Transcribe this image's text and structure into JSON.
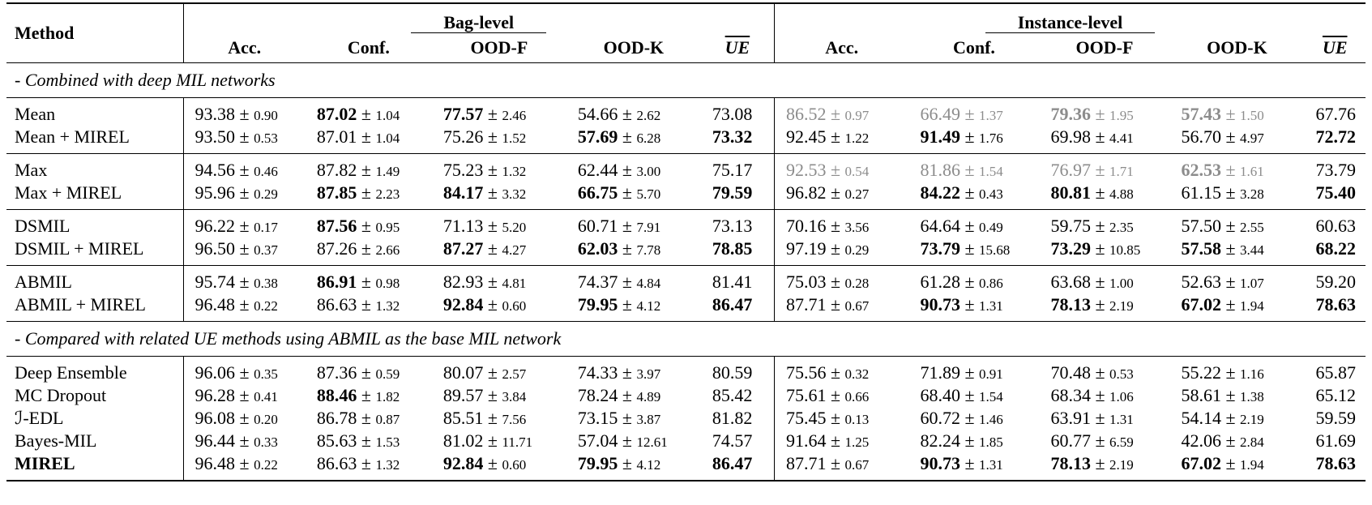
{
  "table": {
    "plus_minus": "±",
    "header": {
      "method": "Method",
      "groups": [
        {
          "title": "Bag-level",
          "columns": [
            "Acc.",
            "Conf.",
            "OOD-F",
            "OOD-K",
            "UE"
          ]
        },
        {
          "title": "Instance-level",
          "columns": [
            "Acc.",
            "Conf.",
            "OOD-F",
            "OOD-K",
            "UE"
          ]
        }
      ]
    },
    "sections": [
      {
        "title": "- Combined with deep MIL networks",
        "groups": [
          {
            "rows": [
              {
                "method": "Mean",
                "cells": [
                  {
                    "mean": "93.38",
                    "std": "0.90"
                  },
                  {
                    "mean": "87.02",
                    "std": "1.04",
                    "bold": true
                  },
                  {
                    "mean": "77.57",
                    "std": "2.46",
                    "bold": true
                  },
                  {
                    "mean": "54.66",
                    "std": "2.62"
                  },
                  {
                    "mean": "73.08"
                  },
                  {
                    "mean": "86.52",
                    "std": "0.97",
                    "gray": true
                  },
                  {
                    "mean": "66.49",
                    "std": "1.37",
                    "gray": true
                  },
                  {
                    "mean": "79.36",
                    "std": "1.95",
                    "gray": true,
                    "bold": true
                  },
                  {
                    "mean": "57.43",
                    "std": "1.50",
                    "gray": true,
                    "bold": true
                  },
                  {
                    "mean": "67.76"
                  }
                ]
              },
              {
                "method": "Mean + MIREL",
                "cells": [
                  {
                    "mean": "93.50",
                    "std": "0.53"
                  },
                  {
                    "mean": "87.01",
                    "std": "1.04"
                  },
                  {
                    "mean": "75.26",
                    "std": "1.52"
                  },
                  {
                    "mean": "57.69",
                    "std": "6.28",
                    "bold": true
                  },
                  {
                    "mean": "73.32",
                    "bold": true
                  },
                  {
                    "mean": "92.45",
                    "std": "1.22"
                  },
                  {
                    "mean": "91.49",
                    "std": "1.76",
                    "bold": true
                  },
                  {
                    "mean": "69.98",
                    "std": "4.41"
                  },
                  {
                    "mean": "56.70",
                    "std": "4.97"
                  },
                  {
                    "mean": "72.72",
                    "bold": true
                  }
                ]
              }
            ]
          },
          {
            "rows": [
              {
                "method": "Max",
                "cells": [
                  {
                    "mean": "94.56",
                    "std": "0.46"
                  },
                  {
                    "mean": "87.82",
                    "std": "1.49"
                  },
                  {
                    "mean": "75.23",
                    "std": "1.32"
                  },
                  {
                    "mean": "62.44",
                    "std": "3.00"
                  },
                  {
                    "mean": "75.17"
                  },
                  {
                    "mean": "92.53",
                    "std": "0.54",
                    "gray": true
                  },
                  {
                    "mean": "81.86",
                    "std": "1.54",
                    "gray": true
                  },
                  {
                    "mean": "76.97",
                    "std": "1.71",
                    "gray": true
                  },
                  {
                    "mean": "62.53",
                    "std": "1.61",
                    "gray": true,
                    "bold": true
                  },
                  {
                    "mean": "73.79"
                  }
                ]
              },
              {
                "method": "Max + MIREL",
                "cells": [
                  {
                    "mean": "95.96",
                    "std": "0.29"
                  },
                  {
                    "mean": "87.85",
                    "std": "2.23",
                    "bold": true
                  },
                  {
                    "mean": "84.17",
                    "std": "3.32",
                    "bold": true
                  },
                  {
                    "mean": "66.75",
                    "std": "5.70",
                    "bold": true
                  },
                  {
                    "mean": "79.59",
                    "bold": true
                  },
                  {
                    "mean": "96.82",
                    "std": "0.27"
                  },
                  {
                    "mean": "84.22",
                    "std": "0.43",
                    "bold": true
                  },
                  {
                    "mean": "80.81",
                    "std": "4.88",
                    "bold": true
                  },
                  {
                    "mean": "61.15",
                    "std": "3.28"
                  },
                  {
                    "mean": "75.40",
                    "bold": true
                  }
                ]
              }
            ]
          },
          {
            "rows": [
              {
                "method": "DSMIL",
                "cells": [
                  {
                    "mean": "96.22",
                    "std": "0.17"
                  },
                  {
                    "mean": "87.56",
                    "std": "0.95",
                    "bold": true
                  },
                  {
                    "mean": "71.13",
                    "std": "5.20"
                  },
                  {
                    "mean": "60.71",
                    "std": "7.91"
                  },
                  {
                    "mean": "73.13"
                  },
                  {
                    "mean": "70.16",
                    "std": "3.56"
                  },
                  {
                    "mean": "64.64",
                    "std": "0.49"
                  },
                  {
                    "mean": "59.75",
                    "std": "2.35"
                  },
                  {
                    "mean": "57.50",
                    "std": "2.55"
                  },
                  {
                    "mean": "60.63"
                  }
                ]
              },
              {
                "method": "DSMIL + MIREL",
                "cells": [
                  {
                    "mean": "96.50",
                    "std": "0.37"
                  },
                  {
                    "mean": "87.26",
                    "std": "2.66"
                  },
                  {
                    "mean": "87.27",
                    "std": "4.27",
                    "bold": true
                  },
                  {
                    "mean": "62.03",
                    "std": "7.78",
                    "bold": true
                  },
                  {
                    "mean": "78.85",
                    "bold": true
                  },
                  {
                    "mean": "97.19",
                    "std": "0.29"
                  },
                  {
                    "mean": "73.79",
                    "std": "15.68",
                    "bold": true
                  },
                  {
                    "mean": "73.29",
                    "std": "10.85",
                    "bold": true
                  },
                  {
                    "mean": "57.58",
                    "std": "3.44",
                    "bold": true
                  },
                  {
                    "mean": "68.22",
                    "bold": true
                  }
                ]
              }
            ]
          },
          {
            "rows": [
              {
                "method": "ABMIL",
                "cells": [
                  {
                    "mean": "95.74",
                    "std": "0.38"
                  },
                  {
                    "mean": "86.91",
                    "std": "0.98",
                    "bold": true
                  },
                  {
                    "mean": "82.93",
                    "std": "4.81"
                  },
                  {
                    "mean": "74.37",
                    "std": "4.84"
                  },
                  {
                    "mean": "81.41"
                  },
                  {
                    "mean": "75.03",
                    "std": "0.28"
                  },
                  {
                    "mean": "61.28",
                    "std": "0.86"
                  },
                  {
                    "mean": "63.68",
                    "std": "1.00"
                  },
                  {
                    "mean": "52.63",
                    "std": "1.07"
                  },
                  {
                    "mean": "59.20"
                  }
                ]
              },
              {
                "method": "ABMIL + MIREL",
                "cells": [
                  {
                    "mean": "96.48",
                    "std": "0.22"
                  },
                  {
                    "mean": "86.63",
                    "std": "1.32"
                  },
                  {
                    "mean": "92.84",
                    "std": "0.60",
                    "bold": true
                  },
                  {
                    "mean": "79.95",
                    "std": "4.12",
                    "bold": true
                  },
                  {
                    "mean": "86.47",
                    "bold": true
                  },
                  {
                    "mean": "87.71",
                    "std": "0.67"
                  },
                  {
                    "mean": "90.73",
                    "std": "1.31",
                    "bold": true
                  },
                  {
                    "mean": "78.13",
                    "std": "2.19",
                    "bold": true
                  },
                  {
                    "mean": "67.02",
                    "std": "1.94",
                    "bold": true
                  },
                  {
                    "mean": "78.63",
                    "bold": true
                  }
                ]
              }
            ]
          }
        ]
      },
      {
        "title": "- Compared with related UE methods using ABMIL as the base MIL network",
        "groups": [
          {
            "rows": [
              {
                "method": "Deep Ensemble",
                "cells": [
                  {
                    "mean": "96.06",
                    "std": "0.35"
                  },
                  {
                    "mean": "87.36",
                    "std": "0.59"
                  },
                  {
                    "mean": "80.07",
                    "std": "2.57"
                  },
                  {
                    "mean": "74.33",
                    "std": "3.97"
                  },
                  {
                    "mean": "80.59"
                  },
                  {
                    "mean": "75.56",
                    "std": "0.32"
                  },
                  {
                    "mean": "71.89",
                    "std": "0.91"
                  },
                  {
                    "mean": "70.48",
                    "std": "0.53"
                  },
                  {
                    "mean": "55.22",
                    "std": "1.16"
                  },
                  {
                    "mean": "65.87"
                  }
                ]
              },
              {
                "method": "MC Dropout",
                "cells": [
                  {
                    "mean": "96.28",
                    "std": "0.41"
                  },
                  {
                    "mean": "88.46",
                    "std": "1.82",
                    "bold": true
                  },
                  {
                    "mean": "89.57",
                    "std": "3.84"
                  },
                  {
                    "mean": "78.24",
                    "std": "4.89"
                  },
                  {
                    "mean": "85.42"
                  },
                  {
                    "mean": "75.61",
                    "std": "0.66"
                  },
                  {
                    "mean": "68.40",
                    "std": "1.54"
                  },
                  {
                    "mean": "68.34",
                    "std": "1.06"
                  },
                  {
                    "mean": "58.61",
                    "std": "1.38"
                  },
                  {
                    "mean": "65.12"
                  }
                ]
              },
              {
                "method": "ℐ-EDL",
                "cells": [
                  {
                    "mean": "96.08",
                    "std": "0.20"
                  },
                  {
                    "mean": "86.78",
                    "std": "0.87"
                  },
                  {
                    "mean": "85.51",
                    "std": "7.56"
                  },
                  {
                    "mean": "73.15",
                    "std": "3.87"
                  },
                  {
                    "mean": "81.82"
                  },
                  {
                    "mean": "75.45",
                    "std": "0.13"
                  },
                  {
                    "mean": "60.72",
                    "std": "1.46"
                  },
                  {
                    "mean": "63.91",
                    "std": "1.31"
                  },
                  {
                    "mean": "54.14",
                    "std": "2.19"
                  },
                  {
                    "mean": "59.59"
                  }
                ]
              },
              {
                "method": "Bayes-MIL",
                "cells": [
                  {
                    "mean": "96.44",
                    "std": "0.33"
                  },
                  {
                    "mean": "85.63",
                    "std": "1.53"
                  },
                  {
                    "mean": "81.02",
                    "std": "11.71"
                  },
                  {
                    "mean": "57.04",
                    "std": "12.61"
                  },
                  {
                    "mean": "74.57"
                  },
                  {
                    "mean": "91.64",
                    "std": "1.25"
                  },
                  {
                    "mean": "82.24",
                    "std": "1.85"
                  },
                  {
                    "mean": "60.77",
                    "std": "6.59"
                  },
                  {
                    "mean": "42.06",
                    "std": "2.84"
                  },
                  {
                    "mean": "61.69"
                  }
                ]
              },
              {
                "method": "MIREL",
                "method_bold": true,
                "cells": [
                  {
                    "mean": "96.48",
                    "std": "0.22"
                  },
                  {
                    "mean": "86.63",
                    "std": "1.32"
                  },
                  {
                    "mean": "92.84",
                    "std": "0.60",
                    "bold": true
                  },
                  {
                    "mean": "79.95",
                    "std": "4.12",
                    "bold": true
                  },
                  {
                    "mean": "86.47",
                    "bold": true
                  },
                  {
                    "mean": "87.71",
                    "std": "0.67"
                  },
                  {
                    "mean": "90.73",
                    "std": "1.31",
                    "bold": true
                  },
                  {
                    "mean": "78.13",
                    "std": "2.19",
                    "bold": true
                  },
                  {
                    "mean": "67.02",
                    "std": "1.94",
                    "bold": true
                  },
                  {
                    "mean": "78.63",
                    "bold": true
                  }
                ]
              }
            ]
          }
        ]
      }
    ]
  }
}
